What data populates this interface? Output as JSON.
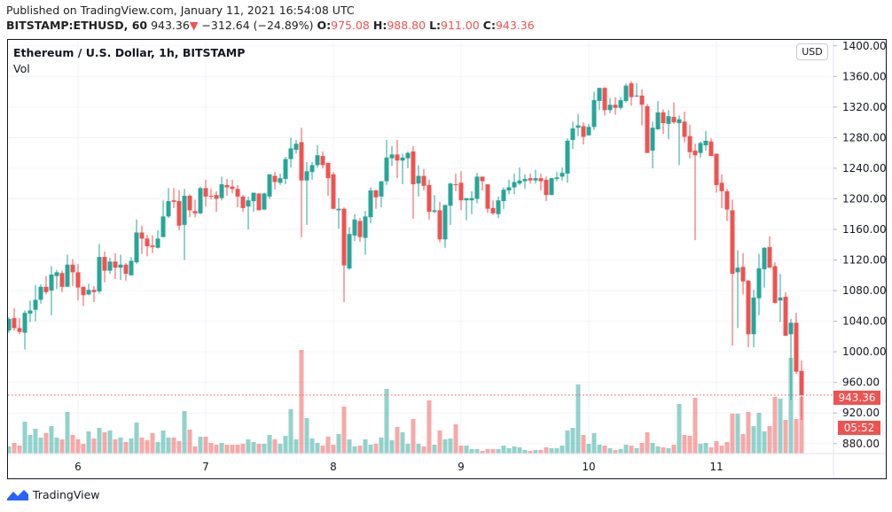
{
  "header": {
    "published": "Published on TradingView.com, January 11, 2021 16:54:08 UTC",
    "symbol": "BITSTAMP:ETHUSD, 60",
    "last": "943.36",
    "change_arrow": "▼",
    "change": "−312.64 (−24.89%)",
    "o_label": "O:",
    "o": "975.08",
    "h_label": "H:",
    "h": "988.80",
    "l_label": "L:",
    "l": "911.00",
    "c_label": "C:",
    "c": "943.36"
  },
  "legend": {
    "title": "Ethereum / U.S. Dollar, 1h, BITSTAMP",
    "vol": "Vol"
  },
  "price_axis": {
    "currency": "USD",
    "last_price": "943.36",
    "countdown": "05:52"
  },
  "footer": {
    "brand": "TradingView"
  },
  "colors": {
    "up": "#26a69a",
    "down": "#ef5350",
    "grid": "#f0f3fa",
    "last_line": "#ef5350"
  },
  "chart_data": {
    "type": "candlestick",
    "interval": "1h",
    "first_bar": "2021-01-05 11:00",
    "last_bar": "2021-01-11 16:00",
    "ylim": [
      867,
      1409
    ],
    "y_ticks": [
      "880.00",
      "920.00",
      "960.00",
      "1000.00",
      "1040.00",
      "1080.00",
      "1120.00",
      "1160.00",
      "1200.00",
      "1240.00",
      "1280.00",
      "1320.00",
      "1360.00",
      "1400.00"
    ],
    "x_ticks": [
      {
        "label": "6",
        "bar": 13
      },
      {
        "label": "7",
        "bar": 37
      },
      {
        "label": "8",
        "bar": 61
      },
      {
        "label": "9",
        "bar": 85
      },
      {
        "label": "10",
        "bar": 109
      },
      {
        "label": "11",
        "bar": 133
      }
    ],
    "grid": true,
    "volume_units": "relative",
    "fields": [
      "open",
      "high",
      "low",
      "close",
      "volume"
    ],
    "bars": [
      [
        1028,
        1045,
        1025,
        1043,
        24
      ],
      [
        1044,
        1057,
        1028,
        1031,
        36
      ],
      [
        1031,
        1044,
        1023,
        1026,
        27
      ],
      [
        1025,
        1054,
        1003,
        1051,
        108
      ],
      [
        1050,
        1067,
        1039,
        1054,
        63
      ],
      [
        1055,
        1087,
        1040,
        1068,
        84
      ],
      [
        1068,
        1088,
        1063,
        1085,
        54
      ],
      [
        1085,
        1099,
        1075,
        1078,
        69
      ],
      [
        1080,
        1112,
        1048,
        1101,
        93
      ],
      [
        1099,
        1107,
        1082,
        1104,
        54
      ],
      [
        1103,
        1106,
        1078,
        1085,
        48
      ],
      [
        1085,
        1127,
        1085,
        1114,
        141
      ],
      [
        1114,
        1121,
        1086,
        1104,
        63
      ],
      [
        1104,
        1115,
        1067,
        1084,
        48
      ],
      [
        1085,
        1085,
        1060,
        1074,
        33
      ],
      [
        1075,
        1089,
        1074,
        1081,
        75
      ],
      [
        1081,
        1086,
        1065,
        1078,
        51
      ],
      [
        1079,
        1141,
        1076,
        1124,
        87
      ],
      [
        1124,
        1131,
        1091,
        1106,
        72
      ],
      [
        1106,
        1123,
        1102,
        1118,
        78
      ],
      [
        1118,
        1129,
        1095,
        1110,
        48
      ],
      [
        1110,
        1127,
        1094,
        1114,
        54
      ],
      [
        1114,
        1116,
        1093,
        1102,
        39
      ],
      [
        1100,
        1124,
        1100,
        1119,
        51
      ],
      [
        1117,
        1173,
        1115,
        1156,
        105
      ],
      [
        1156,
        1165,
        1128,
        1148,
        54
      ],
      [
        1148,
        1153,
        1125,
        1138,
        45
      ],
      [
        1139,
        1152,
        1129,
        1137,
        69
      ],
      [
        1136,
        1159,
        1135,
        1148,
        39
      ],
      [
        1150,
        1198,
        1150,
        1177,
        78
      ],
      [
        1177,
        1214,
        1175,
        1197,
        54
      ],
      [
        1198,
        1214,
        1188,
        1196,
        54
      ],
      [
        1197,
        1211,
        1159,
        1165,
        42
      ],
      [
        1166,
        1213,
        1120,
        1204,
        144
      ],
      [
        1204,
        1206,
        1176,
        1185,
        81
      ],
      [
        1184,
        1199,
        1176,
        1181,
        24
      ],
      [
        1181,
        1216,
        1180,
        1214,
        57
      ],
      [
        1214,
        1225,
        1190,
        1203,
        57
      ],
      [
        1204,
        1213,
        1199,
        1203,
        36
      ],
      [
        1205,
        1210,
        1183,
        1200,
        30
      ],
      [
        1201,
        1229,
        1198,
        1219,
        36
      ],
      [
        1218,
        1226,
        1204,
        1215,
        30
      ],
      [
        1216,
        1225,
        1207,
        1213,
        30
      ],
      [
        1213,
        1218,
        1189,
        1203,
        30
      ],
      [
        1203,
        1205,
        1183,
        1188,
        33
      ],
      [
        1190,
        1203,
        1160,
        1198,
        48
      ],
      [
        1197,
        1208,
        1183,
        1208,
        39
      ],
      [
        1207,
        1207,
        1185,
        1185,
        33
      ],
      [
        1186,
        1208,
        1185,
        1207,
        33
      ],
      [
        1203,
        1232,
        1200,
        1232,
        63
      ],
      [
        1230,
        1235,
        1212,
        1222,
        48
      ],
      [
        1221,
        1233,
        1218,
        1227,
        33
      ],
      [
        1226,
        1255,
        1219,
        1252,
        60
      ],
      [
        1252,
        1280,
        1241,
        1266,
        150
      ],
      [
        1264,
        1277,
        1259,
        1272,
        48
      ],
      [
        1274,
        1293,
        1150,
        1224,
        351
      ],
      [
        1224,
        1248,
        1166,
        1236,
        120
      ],
      [
        1235,
        1248,
        1225,
        1244,
        51
      ],
      [
        1244,
        1270,
        1241,
        1257,
        36
      ],
      [
        1256,
        1262,
        1240,
        1244,
        27
      ],
      [
        1247,
        1247,
        1204,
        1227,
        57
      ],
      [
        1232,
        1235,
        1186,
        1187,
        30
      ],
      [
        1185,
        1201,
        1161,
        1187,
        66
      ],
      [
        1187,
        1189,
        1065,
        1113,
        159
      ],
      [
        1109,
        1163,
        1107,
        1154,
        48
      ],
      [
        1152,
        1180,
        1145,
        1173,
        24
      ],
      [
        1171,
        1175,
        1144,
        1150,
        27
      ],
      [
        1149,
        1184,
        1127,
        1177,
        48
      ],
      [
        1176,
        1215,
        1168,
        1211,
        30
      ],
      [
        1211,
        1212,
        1187,
        1202,
        33
      ],
      [
        1203,
        1223,
        1189,
        1223,
        54
      ],
      [
        1223,
        1277,
        1218,
        1254,
        219
      ],
      [
        1253,
        1269,
        1243,
        1258,
        45
      ],
      [
        1258,
        1277,
        1227,
        1250,
        90
      ],
      [
        1250,
        1259,
        1219,
        1254,
        72
      ],
      [
        1253,
        1262,
        1240,
        1260,
        33
      ],
      [
        1262,
        1269,
        1174,
        1219,
        117
      ],
      [
        1220,
        1244,
        1203,
        1230,
        33
      ],
      [
        1230,
        1239,
        1211,
        1217,
        24
      ],
      [
        1218,
        1225,
        1173,
        1183,
        180
      ],
      [
        1183,
        1205,
        1181,
        1185,
        30
      ],
      [
        1185,
        1196,
        1143,
        1147,
        78
      ],
      [
        1147,
        1192,
        1136,
        1192,
        48
      ],
      [
        1191,
        1221,
        1166,
        1220,
        51
      ],
      [
        1219,
        1233,
        1210,
        1218,
        99
      ],
      [
        1221,
        1236,
        1185,
        1198,
        27
      ],
      [
        1198,
        1201,
        1172,
        1201,
        27
      ],
      [
        1198,
        1210,
        1180,
        1201,
        15
      ],
      [
        1200,
        1234,
        1194,
        1229,
        15
      ],
      [
        1229,
        1229,
        1211,
        1223,
        9
      ],
      [
        1219,
        1219,
        1182,
        1187,
        15
      ],
      [
        1188,
        1198,
        1179,
        1181,
        15
      ],
      [
        1180,
        1203,
        1175,
        1198,
        15
      ],
      [
        1197,
        1215,
        1187,
        1212,
        27
      ],
      [
        1211,
        1225,
        1206,
        1215,
        18
      ],
      [
        1215,
        1233,
        1206,
        1222,
        24
      ],
      [
        1220,
        1241,
        1218,
        1224,
        21
      ],
      [
        1223,
        1232,
        1213,
        1226,
        12
      ],
      [
        1227,
        1233,
        1220,
        1224,
        9
      ],
      [
        1224,
        1238,
        1220,
        1227,
        12
      ],
      [
        1227,
        1233,
        1211,
        1223,
        12
      ],
      [
        1225,
        1229,
        1197,
        1205,
        21
      ],
      [
        1205,
        1227,
        1205,
        1227,
        18
      ],
      [
        1226,
        1235,
        1223,
        1228,
        18
      ],
      [
        1229,
        1241,
        1224,
        1234,
        27
      ],
      [
        1233,
        1279,
        1221,
        1276,
        78
      ],
      [
        1277,
        1301,
        1265,
        1292,
        87
      ],
      [
        1293,
        1311,
        1282,
        1296,
        234
      ],
      [
        1295,
        1300,
        1271,
        1281,
        63
      ],
      [
        1283,
        1298,
        1283,
        1294,
        33
      ],
      [
        1294,
        1340,
        1290,
        1329,
        69
      ],
      [
        1328,
        1345,
        1316,
        1345,
        30
      ],
      [
        1345,
        1346,
        1309,
        1316,
        27
      ],
      [
        1316,
        1332,
        1312,
        1323,
        18
      ],
      [
        1323,
        1333,
        1310,
        1319,
        12
      ],
      [
        1319,
        1333,
        1317,
        1329,
        15
      ],
      [
        1328,
        1351,
        1326,
        1348,
        30
      ],
      [
        1351,
        1354,
        1322,
        1333,
        27
      ],
      [
        1334,
        1351,
        1333,
        1335,
        18
      ],
      [
        1335,
        1343,
        1296,
        1323,
        36
      ],
      [
        1321,
        1324,
        1260,
        1260,
        72
      ],
      [
        1263,
        1301,
        1240,
        1293,
        36
      ],
      [
        1291,
        1328,
        1290,
        1313,
        24
      ],
      [
        1313,
        1317,
        1285,
        1299,
        21
      ],
      [
        1298,
        1316,
        1278,
        1308,
        18
      ],
      [
        1307,
        1326,
        1298,
        1300,
        30
      ],
      [
        1299,
        1309,
        1244,
        1304,
        168
      ],
      [
        1301,
        1314,
        1274,
        1281,
        63
      ],
      [
        1282,
        1297,
        1253,
        1261,
        60
      ],
      [
        1263,
        1272,
        1146,
        1257,
        189
      ],
      [
        1260,
        1275,
        1254,
        1273,
        33
      ],
      [
        1270,
        1289,
        1263,
        1276,
        36
      ],
      [
        1275,
        1279,
        1256,
        1256,
        21
      ],
      [
        1259,
        1259,
        1208,
        1218,
        42
      ],
      [
        1221,
        1232,
        1188,
        1210,
        27
      ],
      [
        1210,
        1213,
        1171,
        1186,
        39
      ],
      [
        1185,
        1199,
        1008,
        1102,
        135
      ],
      [
        1104,
        1133,
        1031,
        1110,
        135
      ],
      [
        1111,
        1129,
        1075,
        1092,
        66
      ],
      [
        1093,
        1094,
        1006,
        1023,
        141
      ],
      [
        1023,
        1081,
        1006,
        1071,
        93
      ],
      [
        1070,
        1128,
        1048,
        1109,
        138
      ],
      [
        1108,
        1137,
        1084,
        1136,
        75
      ],
      [
        1137,
        1151,
        1110,
        1110,
        93
      ],
      [
        1112,
        1117,
        1063,
        1064,
        192
      ],
      [
        1067,
        1102,
        1039,
        1071,
        186
      ],
      [
        1072,
        1078,
        1021,
        1021,
        114
      ],
      [
        1023,
        1043,
        937,
        1038,
        324
      ],
      [
        1038,
        1051,
        971,
        974,
        117
      ],
      [
        975.08,
        988.8,
        911,
        943.36,
        192
      ]
    ]
  }
}
